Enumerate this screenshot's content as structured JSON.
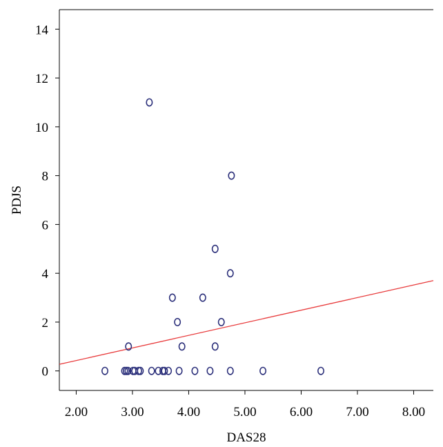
{
  "chart_data": {
    "type": "scatter",
    "title": "",
    "xlabel": "DAS28",
    "ylabel": "PDJS",
    "xlim": [
      1.7,
      8.35
    ],
    "ylim": [
      -0.8,
      14.8
    ],
    "x_ticks": [
      2,
      3,
      4,
      5,
      6,
      7,
      8
    ],
    "x_tick_labels": [
      "2.00",
      "3.00",
      "4.00",
      "5.00",
      "6.00",
      "7.00",
      "8.00"
    ],
    "y_ticks": [
      0,
      2,
      4,
      6,
      8,
      10,
      12,
      14
    ],
    "y_tick_labels": [
      "0",
      "2",
      "4",
      "6",
      "8",
      "10",
      "12",
      "14"
    ],
    "grid": false,
    "series": [
      {
        "color": "#2b2f7a",
        "marker": "open-circle",
        "points": [
          {
            "x": 2.51,
            "y": 0
          },
          {
            "x": 2.86,
            "y": 0
          },
          {
            "x": 2.89,
            "y": 0
          },
          {
            "x": 2.92,
            "y": 0
          },
          {
            "x": 3.01,
            "y": 0
          },
          {
            "x": 3.04,
            "y": 0
          },
          {
            "x": 3.11,
            "y": 0
          },
          {
            "x": 3.14,
            "y": 0
          },
          {
            "x": 3.34,
            "y": 0
          },
          {
            "x": 3.46,
            "y": 0
          },
          {
            "x": 3.54,
            "y": 0
          },
          {
            "x": 3.57,
            "y": 0
          },
          {
            "x": 3.64,
            "y": 0
          },
          {
            "x": 3.83,
            "y": 0
          },
          {
            "x": 4.11,
            "y": 0
          },
          {
            "x": 4.38,
            "y": 0
          },
          {
            "x": 4.74,
            "y": 0
          },
          {
            "x": 5.32,
            "y": 0
          },
          {
            "x": 6.35,
            "y": 0
          },
          {
            "x": 2.93,
            "y": 1
          },
          {
            "x": 3.88,
            "y": 1
          },
          {
            "x": 4.47,
            "y": 1
          },
          {
            "x": 3.8,
            "y": 2
          },
          {
            "x": 4.58,
            "y": 2
          },
          {
            "x": 3.71,
            "y": 3
          },
          {
            "x": 4.25,
            "y": 3
          },
          {
            "x": 4.74,
            "y": 4
          },
          {
            "x": 4.47,
            "y": 5
          },
          {
            "x": 4.76,
            "y": 8
          },
          {
            "x": 3.3,
            "y": 11
          }
        ]
      }
    ],
    "fit_line": {
      "color": "#e8393a",
      "points": [
        {
          "x": 1.7,
          "y": 0.27
        },
        {
          "x": 8.35,
          "y": 3.7
        }
      ]
    }
  }
}
